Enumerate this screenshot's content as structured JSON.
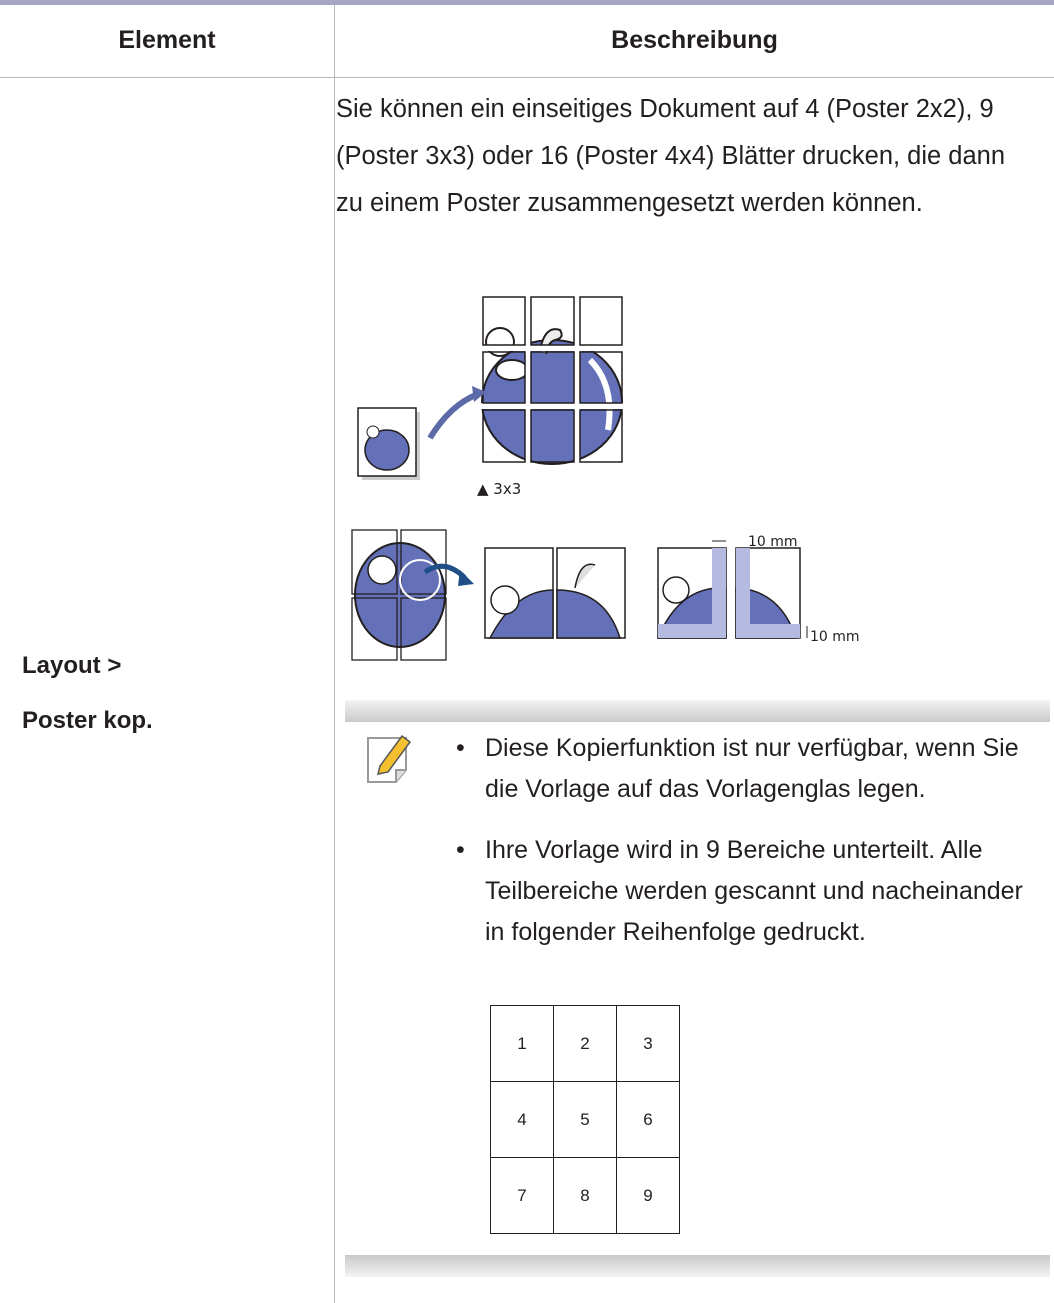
{
  "table": {
    "headers": [
      "Element",
      "Beschreibung"
    ],
    "rows": [
      {
        "element": [
          "Layout >",
          "Poster kop."
        ],
        "description": "Sie können ein einseitiges Dokument auf 4 (Poster 2x2), 9 (Poster 3x3) oder 16 (Poster 4x4) Blätter drucken, die dann zu einem Poster zusammengesetzt werden können.",
        "figure": {
          "caption": "▲ 3x3",
          "margin_top": "10 mm",
          "margin_side": "10 mm"
        },
        "note": {
          "items": [
            "Diese Kopierfunktion ist nur verfügbar, wenn Sie die Vorlage auf das Vorlagenglas legen.",
            "Ihre Vorlage wird in 9 Bereiche unterteilt. Alle Teilbereiche werden gescannt und nacheinander in folgender Reihenfolge gedruckt."
          ],
          "order_grid": [
            [
              1,
              2,
              3
            ],
            [
              4,
              5,
              6
            ],
            [
              7,
              8,
              9
            ]
          ]
        }
      }
    ]
  }
}
